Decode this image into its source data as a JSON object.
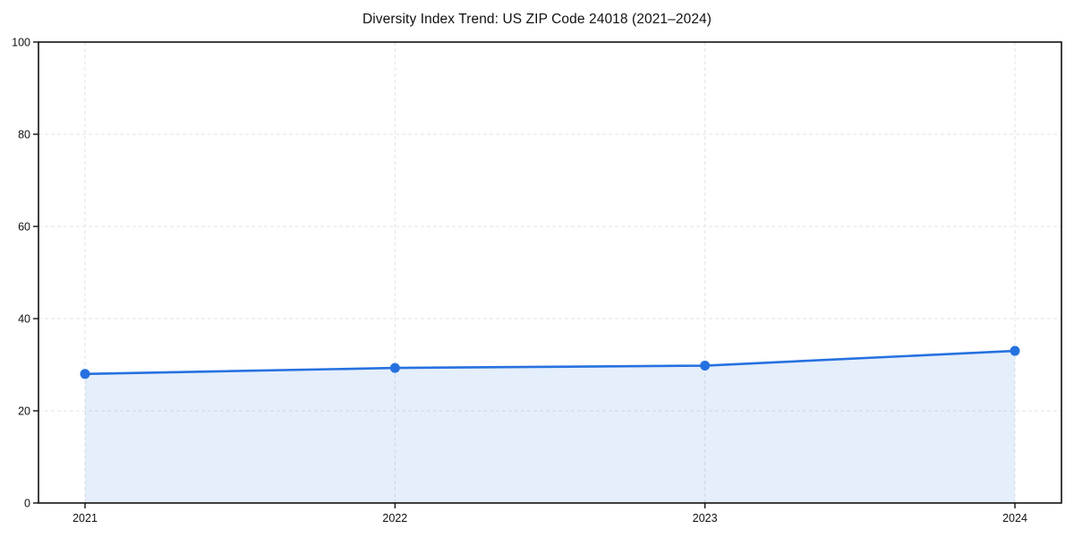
{
  "figure": {
    "background": "#ffffff"
  },
  "chart_data": {
    "type": "line",
    "title": "Diversity Index Trend: US ZIP Code 24018 (2021–2024)",
    "categories": [
      "2021",
      "2022",
      "2023",
      "2024"
    ],
    "series": [
      {
        "name": "Diversity Index",
        "values": [
          28.0,
          29.3,
          29.8,
          33.0
        ]
      }
    ],
    "xlabel": "",
    "ylabel": "",
    "ylim": [
      0,
      100
    ],
    "yticks": [
      0,
      20,
      40,
      60,
      80,
      100
    ],
    "grid": "dashed",
    "legend_position": "none",
    "marker": "circle",
    "style": {
      "line_color": "#2671E0",
      "marker_color": "#2671E0",
      "fill_color": "#2671E0",
      "fill_opacity": 0.12,
      "grid_color": "#E3E3E3",
      "axis_color": "#111111",
      "text_color": "#111111"
    }
  }
}
